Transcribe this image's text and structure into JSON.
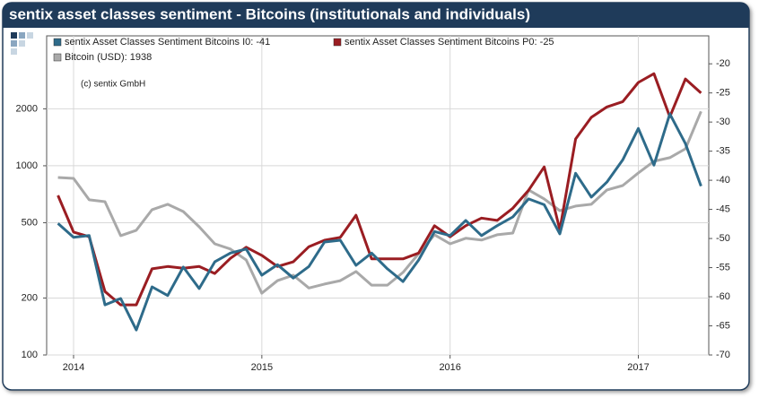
{
  "chart_data": {
    "type": "line",
    "title": "sentix asset classes sentiment - Bitcoins (institutionals and individuals)",
    "annotation": "(c) sentix GmbH",
    "x": [
      2013.917,
      2014.0,
      2014.083,
      2014.167,
      2014.25,
      2014.333,
      2014.417,
      2014.5,
      2014.583,
      2014.667,
      2014.75,
      2014.833,
      2014.917,
      2015.0,
      2015.083,
      2015.167,
      2015.25,
      2015.333,
      2015.417,
      2015.5,
      2015.583,
      2015.667,
      2015.75,
      2015.833,
      2015.917,
      2016.0,
      2016.083,
      2016.167,
      2016.25,
      2016.333,
      2016.417,
      2016.5,
      2016.583,
      2016.667,
      2016.75,
      2016.833,
      2016.917,
      2017.0,
      2017.083,
      2017.167,
      2017.25,
      2017.333
    ],
    "xlim": [
      2013.857,
      2017.374
    ],
    "xticks": [
      2014,
      2015,
      2016,
      2017
    ],
    "ylim": [
      100,
      4860
    ],
    "yticks": [
      100,
      200,
      500,
      1000,
      2000
    ],
    "y_scale": "log",
    "y2lim": [
      -70,
      -15.2
    ],
    "y2ticks": [
      -70,
      -65,
      -60,
      -55,
      -50,
      -45,
      -40,
      -35,
      -30,
      -25,
      -20
    ],
    "grid": true,
    "legend": "top-left",
    "series": [
      {
        "name": "sentix Asset Classes Sentiment Bitcoins I0: -41",
        "color": "#2e6b8a",
        "axis": "y2",
        "values": [
          -47.4,
          -49.8,
          -49.5,
          -61.4,
          -60.3,
          -65.7,
          -58.3,
          -59.8,
          -54.9,
          -58.6,
          -54.0,
          -52.5,
          -51.8,
          -56.3,
          -54.5,
          -56.8,
          -54.8,
          -50.6,
          -50.3,
          -54.6,
          -52.5,
          -55.2,
          -57.4,
          -53.7,
          -48.8,
          -49.5,
          -46.9,
          -49.5,
          -47.8,
          -46.3,
          -43.2,
          -44.2,
          -49.2,
          -38.8,
          -42.9,
          -40.3,
          -36.5,
          -31.1,
          -37.4,
          -28.6,
          -33.7,
          -41
        ]
      },
      {
        "name": "sentix Asset Classes Sentiment Bitcoins P0: -25",
        "color": "#9a1d22",
        "axis": "y2",
        "values": [
          -42.6,
          -48.9,
          -49.7,
          -59.1,
          -61.4,
          -61.4,
          -55.2,
          -54.8,
          -55.1,
          -54.8,
          -56.0,
          -53.4,
          -51.5,
          -52.9,
          -54.8,
          -54.0,
          -51.4,
          -50.3,
          -49.8,
          -46.0,
          -53.5,
          -53.5,
          -53.5,
          -52.5,
          -47.8,
          -49.7,
          -47.8,
          -46.5,
          -46.9,
          -44.8,
          -41.7,
          -37.7,
          -48.5,
          -32.9,
          -29.2,
          -27.4,
          -26.5,
          -23.2,
          -21.7,
          -29.1,
          -22.6,
          -25
        ]
      },
      {
        "name": "Bitcoin (USD): 1938",
        "color": "#a9a9a9",
        "values": [
          867,
          858,
          661,
          646,
          427,
          456,
          586,
          626,
          573,
          476,
          387,
          363,
          318,
          212,
          247,
          264,
          226,
          237,
          247,
          276,
          234,
          234,
          273,
          343,
          432,
          387,
          414,
          405,
          432,
          441,
          745,
          668,
          579,
          612,
          626,
          745,
          786,
          917,
          1056,
          1103,
          1230,
          1938
        ]
      }
    ]
  }
}
